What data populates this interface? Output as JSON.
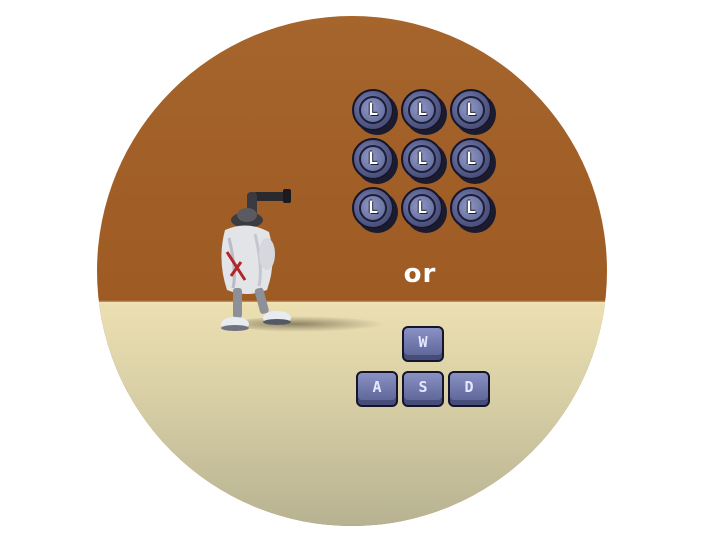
{
  "gamepad": {
    "stick_labels": [
      "L",
      "L",
      "L",
      "L",
      "L",
      "L",
      "L",
      "L",
      "L"
    ]
  },
  "separator": {
    "label": "or"
  },
  "keyboard": {
    "keys": {
      "up": "W",
      "left": "A",
      "down": "S",
      "right": "D"
    }
  },
  "colors": {
    "wall": "#9e5b24",
    "floor": "#e4dab0",
    "key_face": "#6c73a6",
    "outline": "#14152a"
  },
  "icons": {
    "character": "player-character-icon",
    "stick": "left-stick-icon"
  }
}
